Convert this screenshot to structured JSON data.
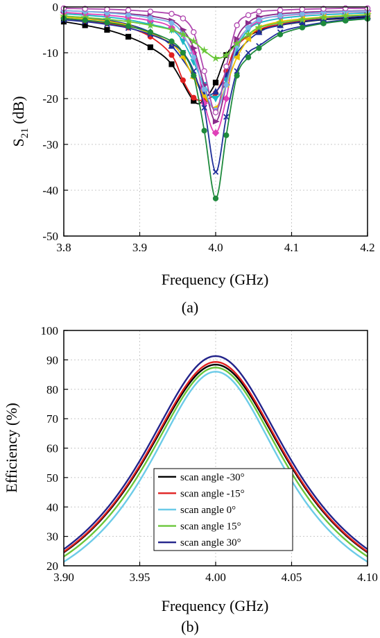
{
  "chart_data": [
    {
      "id": "a",
      "type": "line",
      "caption": "(a)",
      "xlabel": "Frequency (GHz)",
      "ylabel_main": "S",
      "ylabel_sub": "21",
      "ylabel_unit": " (dB)",
      "xlim": [
        3.8,
        4.2
      ],
      "ylim": [
        -50,
        0
      ],
      "xticks": [
        3.8,
        3.9,
        4.0,
        4.1,
        4.2
      ],
      "xtick_labels": [
        "3.8",
        "3.9",
        "4.0",
        "4.1",
        "4.2"
      ],
      "yticks": [
        -50,
        -40,
        -30,
        -20,
        -10,
        0
      ],
      "ytick_labels": [
        "-50",
        "-40",
        "-30",
        "-20",
        "-10",
        "0"
      ],
      "grid": true,
      "series": [
        {
          "color": "#000000",
          "marker": "square",
          "x": [
            3.8,
            3.828,
            3.857,
            3.885,
            3.914,
            3.942,
            3.971,
            3.985,
            4.0,
            4.014,
            4.028,
            4.057,
            4.085,
            4.114,
            4.142,
            4.171,
            4.2
          ],
          "y": [
            -3.2,
            -4.0,
            -5.0,
            -6.5,
            -8.8,
            -12.5,
            -20.5,
            -20.2,
            -16.5,
            -10.5,
            -8.0,
            -5.2,
            -4.0,
            -3.3,
            -2.8,
            -2.5,
            -2.2
          ]
        },
        {
          "color": "#e02020",
          "marker": "circle",
          "x": [
            3.8,
            3.828,
            3.857,
            3.885,
            3.914,
            3.942,
            3.957,
            3.971,
            3.985,
            4.0,
            4.014,
            4.028,
            4.057,
            4.085,
            4.114,
            4.142,
            4.171,
            4.2
          ],
          "y": [
            -2.5,
            -3.0,
            -3.6,
            -4.5,
            -6.5,
            -10.5,
            -16.0,
            -19.8,
            -20.3,
            -18.8,
            -14.0,
            -8.5,
            -5.0,
            -3.8,
            -3.0,
            -2.6,
            -2.3,
            -2.0
          ]
        },
        {
          "color": "#1f2f9a",
          "marker": "triangle",
          "x": [
            3.8,
            3.828,
            3.857,
            3.885,
            3.914,
            3.942,
            3.971,
            3.985,
            4.0,
            4.014,
            4.028,
            4.057,
            4.085,
            4.114,
            4.142,
            4.171,
            4.2
          ],
          "y": [
            -2.0,
            -2.4,
            -2.9,
            -3.8,
            -5.5,
            -8.5,
            -15.0,
            -19.0,
            -18.5,
            -15.0,
            -10.0,
            -5.5,
            -4.0,
            -3.2,
            -2.7,
            -2.3,
            -2.0
          ]
        },
        {
          "color": "#1bb6c4",
          "marker": "triangle-down",
          "x": [
            3.8,
            3.828,
            3.857,
            3.885,
            3.914,
            3.942,
            3.957,
            3.971,
            3.985,
            4.0,
            4.014,
            4.028,
            4.043,
            4.057,
            4.085,
            4.114,
            4.142,
            4.171,
            4.2
          ],
          "y": [
            -1.5,
            -1.8,
            -2.2,
            -2.8,
            -3.8,
            -5.0,
            -7.5,
            -12.0,
            -17.0,
            -20.0,
            -16.0,
            -9.0,
            -5.0,
            -3.5,
            -2.5,
            -2.0,
            -1.7,
            -1.5,
            -1.3
          ]
        },
        {
          "color": "#e040b8",
          "marker": "diamond",
          "x": [
            3.8,
            3.828,
            3.857,
            3.885,
            3.914,
            3.942,
            3.971,
            3.985,
            4.0,
            4.014,
            4.028,
            4.057,
            4.085,
            4.114,
            4.142,
            4.171,
            4.2
          ],
          "y": [
            -1.2,
            -1.5,
            -1.8,
            -2.3,
            -3.0,
            -4.5,
            -10.0,
            -21.0,
            -27.5,
            -20.0,
            -8.0,
            -3.0,
            -2.0,
            -1.6,
            -1.3,
            -1.1,
            -1.0
          ]
        },
        {
          "color": "#e8c000",
          "marker": "triangle-left",
          "x": [
            3.8,
            3.828,
            3.857,
            3.885,
            3.914,
            3.942,
            3.957,
            3.971,
            3.985,
            4.0,
            4.014,
            4.028,
            4.043,
            4.057,
            4.085,
            4.114,
            4.142,
            4.171,
            4.2
          ],
          "y": [
            -2.2,
            -2.6,
            -3.1,
            -4.0,
            -5.8,
            -8.0,
            -11.0,
            -15.5,
            -19.5,
            -22.0,
            -17.0,
            -11.0,
            -7.0,
            -4.5,
            -3.2,
            -2.6,
            -2.2,
            -1.9,
            -1.7
          ]
        },
        {
          "color": "#8a2a8a",
          "marker": "triangle-right",
          "x": [
            3.8,
            3.828,
            3.857,
            3.885,
            3.914,
            3.942,
            3.957,
            3.971,
            3.985,
            4.0,
            4.014,
            4.028,
            4.043,
            4.057,
            4.085,
            4.114,
            4.142,
            4.171,
            4.2
          ],
          "y": [
            -0.8,
            -1.0,
            -1.2,
            -1.5,
            -2.0,
            -3.0,
            -5.0,
            -9.0,
            -17.0,
            -25.0,
            -17.0,
            -7.0,
            -3.5,
            -2.2,
            -1.5,
            -1.2,
            -1.0,
            -0.9,
            -0.8
          ]
        },
        {
          "color": "#7ab8e8",
          "marker": "hexagon",
          "x": [
            3.8,
            3.828,
            3.857,
            3.885,
            3.914,
            3.942,
            3.957,
            3.971,
            3.985,
            4.0,
            4.014,
            4.028,
            4.043,
            4.057,
            4.085,
            4.114,
            4.142,
            4.171,
            4.2
          ],
          "y": [
            -0.8,
            -1.0,
            -1.3,
            -1.7,
            -2.4,
            -3.5,
            -6.0,
            -11.0,
            -18.0,
            -22.5,
            -17.0,
            -8.5,
            -4.5,
            -2.8,
            -1.9,
            -1.5,
            -1.2,
            -1.0,
            -0.9
          ]
        },
        {
          "color": "#b048b0",
          "marker": "circle-open",
          "x": [
            3.8,
            3.828,
            3.857,
            3.885,
            3.914,
            3.942,
            3.957,
            3.971,
            3.985,
            4.0,
            4.014,
            4.028,
            4.043,
            4.057,
            4.085,
            4.114,
            4.142,
            4.171,
            4.2
          ],
          "y": [
            -0.3,
            -0.4,
            -0.5,
            -0.7,
            -1.0,
            -1.5,
            -2.5,
            -5.5,
            -14.0,
            -23.0,
            -13.0,
            -4.0,
            -1.8,
            -1.0,
            -0.7,
            -0.5,
            -0.4,
            -0.3,
            -0.3
          ]
        },
        {
          "color": "#6ac63a",
          "marker": "star",
          "x": [
            3.8,
            3.828,
            3.857,
            3.885,
            3.914,
            3.942,
            3.957,
            3.971,
            3.985,
            4.0,
            4.014,
            4.028,
            4.043,
            4.057,
            4.085,
            4.114,
            4.142,
            4.171,
            4.2
          ],
          "y": [
            -2.0,
            -2.3,
            -2.7,
            -3.2,
            -4.0,
            -5.0,
            -6.0,
            -7.5,
            -9.5,
            -11.2,
            -10.5,
            -8.0,
            -6.0,
            -4.5,
            -3.5,
            -2.8,
            -2.3,
            -2.0,
            -1.7
          ]
        },
        {
          "color": "#1f2f9a",
          "marker": "x",
          "x": [
            3.8,
            3.828,
            3.857,
            3.885,
            3.914,
            3.942,
            3.957,
            3.971,
            3.985,
            4.0,
            4.014,
            4.028,
            4.043,
            4.057,
            4.085,
            4.114,
            4.142,
            4.171,
            4.2
          ],
          "y": [
            -2.8,
            -3.2,
            -3.8,
            -4.6,
            -6.0,
            -8.0,
            -10.0,
            -14.0,
            -22.0,
            -36.0,
            -24.0,
            -14.0,
            -10.0,
            -8.5,
            -5.5,
            -4.2,
            -3.4,
            -2.8,
            -2.4
          ]
        },
        {
          "color": "#1e8a3c",
          "marker": "circle",
          "x": [
            3.8,
            3.828,
            3.857,
            3.885,
            3.914,
            3.942,
            3.957,
            3.971,
            3.985,
            4.0,
            4.014,
            4.028,
            4.043,
            4.057,
            4.085,
            4.114,
            4.142,
            4.171,
            4.2
          ],
          "y": [
            -2.5,
            -2.9,
            -3.4,
            -4.2,
            -5.5,
            -7.5,
            -10.0,
            -15.0,
            -27.0,
            -41.8,
            -28.0,
            -15.0,
            -11.0,
            -9.0,
            -6.0,
            -4.5,
            -3.6,
            -3.0,
            -2.6
          ]
        }
      ]
    },
    {
      "id": "b",
      "type": "line",
      "caption": "(b)",
      "xlabel": "Frequency (GHz)",
      "ylabel": "Efficiency (%)",
      "xlim": [
        3.9,
        4.1
      ],
      "ylim": [
        20,
        100
      ],
      "xticks": [
        3.9,
        3.95,
        4.0,
        4.05,
        4.1
      ],
      "xtick_labels": [
        "3.90",
        "3.95",
        "4.00",
        "4.05",
        "4.10"
      ],
      "yticks": [
        20,
        30,
        40,
        50,
        60,
        70,
        80,
        90,
        100
      ],
      "ytick_labels": [
        "20",
        "30",
        "40",
        "50",
        "60",
        "70",
        "80",
        "90",
        "100"
      ],
      "grid": true,
      "legend_position": "bottom-center",
      "series": [
        {
          "name": "scan angle -30°",
          "color": "#000000",
          "peak": 88.4,
          "fwhm": 0.124,
          "floor": 0
        },
        {
          "name": "scan angle -15°",
          "color": "#e02020",
          "peak": 89.3,
          "fwhm": 0.124,
          "floor": 0
        },
        {
          "name": "scan angle  0°",
          "color": "#6ccbe8",
          "peak": 86.0,
          "fwhm": 0.115,
          "floor": 0
        },
        {
          "name": "scan angle  15°",
          "color": "#6ac63a",
          "peak": 87.4,
          "fwhm": 0.12,
          "floor": 0
        },
        {
          "name": "scan angle  30°",
          "color": "#22238a",
          "peak": 91.3,
          "fwhm": 0.125,
          "floor": 0
        }
      ]
    }
  ]
}
